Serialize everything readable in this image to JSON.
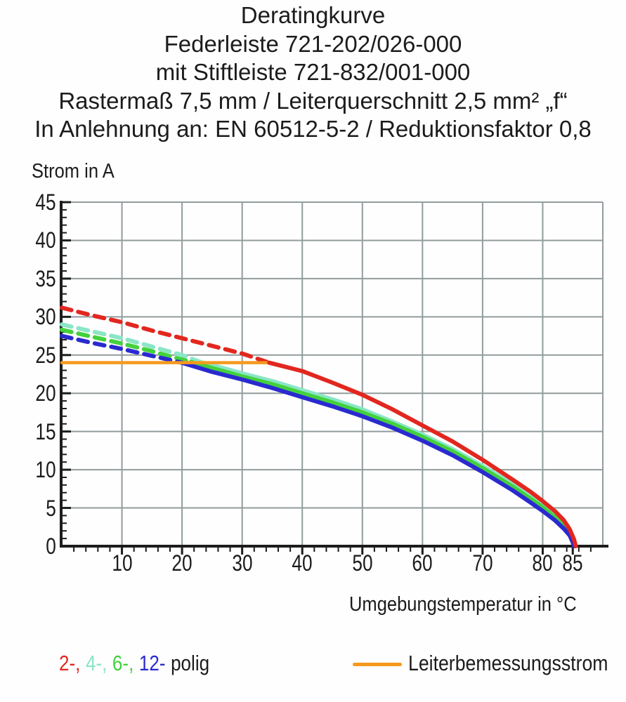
{
  "page": {
    "background": "#fefefe",
    "text_color": "#1c1c1c"
  },
  "title": {
    "lines": [
      "Deratingkurve",
      "Federleiste 721-202/026-000",
      "mit Stiftleiste 721-832/001-000",
      "Rastermaß 7,5 mm / Leiterquerschnitt 2,5 mm² „f“",
      "In Anlehnung an: EN 60512-5-2 / Reduktionsfaktor 0,8"
    ]
  },
  "axes": {
    "y_label": "Strom in A",
    "x_label": "Umgebungstemperatur in °C"
  },
  "legend": {
    "pole_items": [
      {
        "label": "2-,",
        "color": "#e2271f"
      },
      {
        "label": "4-,",
        "color": "#8ae6c6"
      },
      {
        "label": "6-,",
        "color": "#43d13c"
      },
      {
        "label": "12-",
        "color": "#2a2ad0"
      }
    ],
    "suffix": "polig",
    "reference_label": "Leiterbemessungsstrom",
    "reference_color": "#f5991d"
  },
  "chart_data": {
    "type": "line",
    "title": "Deratingkurve Federleiste 721-202/026-000 mit Stiftleiste 721-832/001-000",
    "xlabel": "Umgebungstemperatur in °C",
    "ylabel": "Strom in A",
    "xlim": [
      0,
      90
    ],
    "ylim": [
      0,
      45
    ],
    "grid": true,
    "grid_color": "#929c9c",
    "axis_color": "#1c1c1c",
    "x_major_ticks": [
      10,
      20,
      30,
      40,
      50,
      60,
      70,
      80,
      85
    ],
    "x_minor_step": 2,
    "y_major_ticks": [
      0,
      5,
      10,
      15,
      20,
      25,
      30,
      35,
      40,
      45
    ],
    "y_minor_step": 1,
    "reference_line": {
      "name": "Leiterbemessungsstrom",
      "color": "#f5991d",
      "value": 24,
      "x_from": 0,
      "x_to": 34.5
    },
    "series": [
      {
        "name": "2-polig",
        "color": "#e2271f",
        "dashed": [
          [
            0,
            31.2
          ],
          [
            5,
            30.2
          ],
          [
            10,
            29.3
          ],
          [
            15,
            28.2
          ],
          [
            20,
            27.2
          ],
          [
            25,
            26.2
          ],
          [
            30,
            25.2
          ],
          [
            34.5,
            24.0
          ]
        ],
        "solid": [
          [
            34.5,
            24.0
          ],
          [
            40,
            22.9
          ],
          [
            45,
            21.4
          ],
          [
            50,
            19.8
          ],
          [
            55,
            17.9
          ],
          [
            60,
            15.8
          ],
          [
            65,
            13.7
          ],
          [
            70,
            11.3
          ],
          [
            75,
            8.7
          ],
          [
            78,
            7.1
          ],
          [
            80,
            5.9
          ],
          [
            82,
            4.6
          ],
          [
            83.5,
            3.4
          ],
          [
            84.5,
            2.2
          ],
          [
            85.2,
            0.9
          ],
          [
            85.5,
            0
          ]
        ]
      },
      {
        "name": "4-polig",
        "color": "#8ae6c6",
        "dashed": [
          [
            0,
            29.0
          ],
          [
            5,
            28.1
          ],
          [
            10,
            27.2
          ],
          [
            15,
            26.1
          ],
          [
            20,
            25.0
          ],
          [
            23,
            24.1
          ]
        ],
        "solid": [
          [
            23,
            24.1
          ],
          [
            25,
            23.7
          ],
          [
            30,
            22.6
          ],
          [
            35,
            21.6
          ],
          [
            40,
            20.4
          ],
          [
            45,
            19.2
          ],
          [
            50,
            17.9
          ],
          [
            55,
            16.3
          ],
          [
            60,
            14.6
          ],
          [
            65,
            12.7
          ],
          [
            70,
            10.5
          ],
          [
            75,
            8.1
          ],
          [
            78,
            6.4
          ],
          [
            80,
            5.3
          ],
          [
            82,
            4.0
          ],
          [
            83.5,
            2.8
          ],
          [
            84.5,
            1.7
          ],
          [
            85,
            0.8
          ],
          [
            85.3,
            0
          ]
        ]
      },
      {
        "name": "6-polig",
        "color": "#43d13c",
        "dashed": [
          [
            0,
            28.3
          ],
          [
            5,
            27.4
          ],
          [
            10,
            26.5
          ],
          [
            15,
            25.5
          ],
          [
            20,
            24.4
          ],
          [
            21.5,
            24.1
          ]
        ],
        "solid": [
          [
            21.5,
            24.1
          ],
          [
            25,
            23.3
          ],
          [
            30,
            22.2
          ],
          [
            35,
            21.2
          ],
          [
            40,
            20.0
          ],
          [
            45,
            18.8
          ],
          [
            50,
            17.5
          ],
          [
            55,
            16.0
          ],
          [
            60,
            14.3
          ],
          [
            65,
            12.4
          ],
          [
            70,
            10.2
          ],
          [
            75,
            7.8
          ],
          [
            78,
            6.2
          ],
          [
            80,
            5.1
          ],
          [
            82,
            3.8
          ],
          [
            83.5,
            2.6
          ],
          [
            84.5,
            1.6
          ],
          [
            85,
            0.7
          ],
          [
            85.3,
            0
          ]
        ]
      },
      {
        "name": "12-polig",
        "color": "#2a2ad0",
        "dashed": [
          [
            0,
            27.5
          ],
          [
            5,
            26.6
          ],
          [
            10,
            25.8
          ],
          [
            15,
            24.9
          ],
          [
            20,
            24.0
          ]
        ],
        "solid": [
          [
            20,
            24.0
          ],
          [
            25,
            22.8
          ],
          [
            30,
            21.8
          ],
          [
            35,
            20.7
          ],
          [
            40,
            19.5
          ],
          [
            45,
            18.3
          ],
          [
            50,
            17.0
          ],
          [
            55,
            15.5
          ],
          [
            60,
            13.8
          ],
          [
            65,
            11.9
          ],
          [
            70,
            9.7
          ],
          [
            75,
            7.3
          ],
          [
            78,
            5.7
          ],
          [
            80,
            4.6
          ],
          [
            82,
            3.4
          ],
          [
            83.5,
            2.3
          ],
          [
            84.5,
            1.4
          ],
          [
            85,
            0.5
          ],
          [
            85.2,
            0
          ]
        ]
      }
    ]
  }
}
